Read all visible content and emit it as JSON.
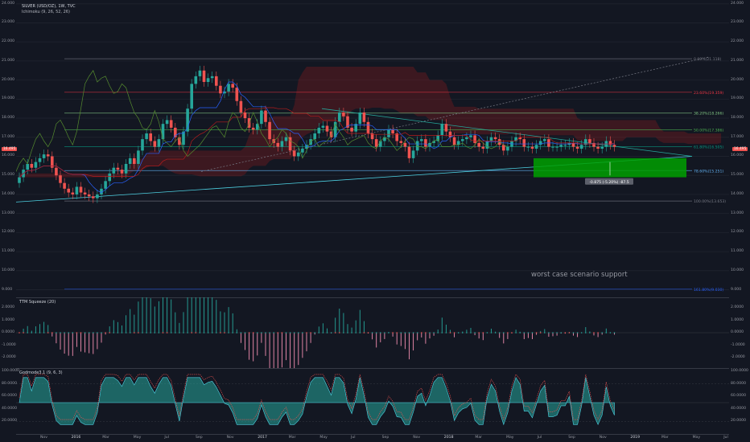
{
  "main_pane": {
    "title": "SILVER (USD/OZ), 1W, TVC",
    "indicator": "Ichimoku (9, 26, 52, 26)",
    "annotation": "worst case scenario support",
    "measure_label": "-0.875 (-5.20%) -87.5",
    "last_price": "16.495",
    "price_axis": [
      "24.000",
      "23.000",
      "22.000",
      "21.000",
      "20.000",
      "19.000",
      "18.000",
      "17.000",
      "16.000",
      "15.000",
      "14.000",
      "13.000",
      "12.000",
      "11.000",
      "10.000",
      "9.000"
    ],
    "fib_levels": [
      {
        "label": "0.00%(21.118)",
        "price": 21.118,
        "color": "#787b86"
      },
      {
        "label": "23.60%(19.359)",
        "price": 19.359,
        "color": "#f23645"
      },
      {
        "label": "38.20%(18.266)",
        "price": 18.266,
        "color": "#81c784"
      },
      {
        "label": "50.00%(17.386)",
        "price": 17.386,
        "color": "#4caf50"
      },
      {
        "label": "61.80%(16.505)",
        "price": 16.505,
        "color": "#089981"
      },
      {
        "label": "78.60%(15.251)",
        "price": 15.251,
        "color": "#64b5f6"
      },
      {
        "label": "100.00%(13.653)",
        "price": 13.653,
        "color": "#787b86"
      },
      {
        "label": "161.80%(9.030)",
        "price": 9.03,
        "color": "#2962ff"
      }
    ]
  },
  "squeeze_pane": {
    "title": "TTM Squeeze (20)",
    "axis": [
      "2.0000",
      "1.0000",
      "0.0000",
      "-1.0000",
      "-2.0000"
    ]
  },
  "godmode_pane": {
    "title": "Godmode3.1 (9, 6, 3)",
    "axis": [
      "100.0000",
      "80.0000",
      "60.0000",
      "40.0000",
      "20.0000"
    ]
  },
  "time_axis": [
    "Nov",
    "2016",
    "Mar",
    "May",
    "Jul",
    "Sep",
    "Nov",
    "2017",
    "Mar",
    "May",
    "Jul",
    "Sep",
    "Nov",
    "2018",
    "Mar",
    "May",
    "Jul",
    "Sep",
    "Nov",
    "2019",
    "Mar",
    "May",
    "Jul"
  ],
  "chart_data": {
    "type": "candlestick",
    "title": "SILVER (USD/OZ), 1W, TVC",
    "ylim": [
      8.6,
      24.2
    ],
    "series": [
      {
        "values": [
          14.9,
          15.3,
          15.6,
          15.4,
          15.7,
          15.9,
          16.1,
          16.0,
          15.4,
          15.0,
          14.6,
          14.3,
          14.1,
          14.0,
          14.4,
          14.1,
          14.0,
          13.9,
          13.8,
          14.0,
          14.3,
          14.7,
          15.1,
          15.4,
          15.3,
          15.1,
          15.6,
          15.9,
          15.6,
          16.3,
          16.9,
          17.2,
          16.8,
          16.5,
          16.9,
          17.7,
          17.9,
          17.5,
          17.0,
          16.6,
          17.3,
          18.5,
          19.8,
          20.2,
          20.5,
          19.9,
          20.1,
          20.2,
          19.7,
          19.3,
          19.4,
          19.8,
          19.6,
          18.9,
          18.3,
          18.0,
          17.5,
          17.4,
          17.7,
          18.4,
          17.8,
          16.9,
          16.7,
          16.5,
          16.8,
          17.0,
          16.3,
          16.0,
          16.2,
          16.4,
          16.6,
          16.9,
          17.2,
          17.5,
          17.6,
          17.3,
          17.0,
          17.8,
          18.3,
          18.1,
          17.5,
          17.3,
          17.7,
          18.3,
          17.8,
          17.2,
          16.9,
          16.5,
          16.8,
          17.0,
          17.4,
          17.2,
          16.8,
          16.7,
          16.5,
          15.9,
          16.3,
          16.8,
          16.9,
          16.5,
          16.7,
          16.8,
          17.1,
          17.7,
          17.3,
          17.0,
          16.6,
          16.8,
          16.9,
          17.0,
          17.1,
          16.7,
          16.5,
          16.4,
          16.8,
          17.0,
          16.9,
          16.6,
          16.3,
          16.5,
          16.8,
          17.0,
          16.9,
          16.5,
          16.5,
          16.4,
          16.6,
          16.8,
          16.9,
          16.5,
          16.5,
          16.5,
          16.6,
          16.6,
          16.7,
          16.5,
          16.4,
          16.6,
          16.9,
          16.7,
          16.5,
          16.4,
          16.5,
          16.8,
          16.6,
          16.5
        ]
      }
    ]
  }
}
